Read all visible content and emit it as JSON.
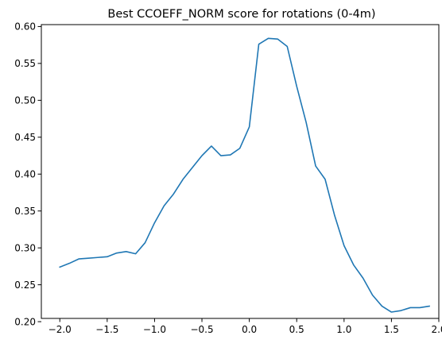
{
  "chart_data": {
    "type": "line",
    "title": "Best CCOEFF_NORM score for rotations (0-4m)",
    "xlabel": "",
    "ylabel": "",
    "xlim": [
      -2.195,
      2.0
    ],
    "ylim": [
      0.2044,
      0.6026
    ],
    "grid": false,
    "x_ticks": [
      -2.0,
      -1.5,
      -1.0,
      -0.5,
      0.0,
      0.5,
      1.0,
      1.5,
      2.0
    ],
    "x_tick_labels": [
      "−2.0",
      "−1.5",
      "−1.0",
      "−0.5",
      "0.0",
      "0.5",
      "1.0",
      "1.5",
      "2.0"
    ],
    "y_ticks": [
      0.2,
      0.25,
      0.3,
      0.35,
      0.4,
      0.45,
      0.5,
      0.55,
      0.6
    ],
    "y_tick_labels": [
      "0.20",
      "0.25",
      "0.30",
      "0.35",
      "0.40",
      "0.45",
      "0.50",
      "0.55",
      "0.60"
    ],
    "series": [
      {
        "color": "#1f77b4",
        "x": [
          -2.0,
          -1.9,
          -1.8,
          -1.7,
          -1.6,
          -1.5,
          -1.4,
          -1.3,
          -1.2,
          -1.1,
          -1.0,
          -0.9,
          -0.8,
          -0.7,
          -0.6,
          -0.5,
          -0.4,
          -0.3,
          -0.2,
          -0.1,
          0.0,
          0.1,
          0.2,
          0.3,
          0.4,
          0.5,
          0.6,
          0.7,
          0.8,
          0.9,
          1.0,
          1.1,
          1.2,
          1.3,
          1.4,
          1.5,
          1.6,
          1.7,
          1.8,
          1.9
        ],
        "values": [
          0.274,
          0.279,
          0.285,
          0.286,
          0.287,
          0.288,
          0.293,
          0.295,
          0.292,
          0.307,
          0.334,
          0.357,
          0.373,
          0.393,
          0.409,
          0.425,
          0.438,
          0.425,
          0.426,
          0.435,
          0.464,
          0.576,
          0.584,
          0.583,
          0.573,
          0.519,
          0.47,
          0.411,
          0.393,
          0.344,
          0.303,
          0.277,
          0.259,
          0.236,
          0.221,
          0.213,
          0.215,
          0.219,
          0.219,
          0.221
        ]
      }
    ]
  }
}
